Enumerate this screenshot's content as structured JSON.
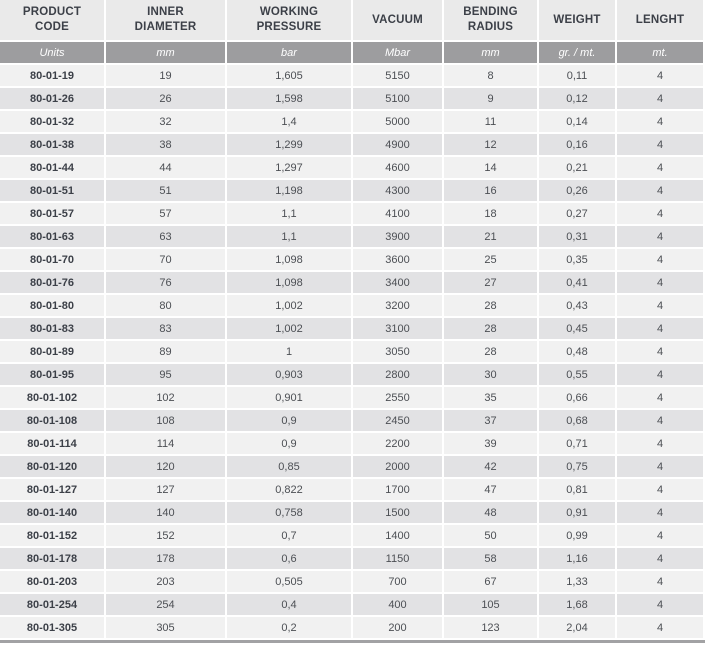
{
  "table": {
    "headers": [
      "PRODUCT\nCODE",
      "INNER\nDIAMETER",
      "WORKING\nPRESSURE",
      "VACUUM",
      "BENDING\nRADIUS",
      "WEIGHT",
      "LENGHT"
    ],
    "units": [
      "Units",
      "mm",
      "bar",
      "Mbar",
      "mm",
      "gr. / mt.",
      "mt."
    ],
    "rows": [
      [
        "80-01-19",
        "19",
        "1,605",
        "5150",
        "8",
        "0,11",
        "4"
      ],
      [
        "80-01-26",
        "26",
        "1,598",
        "5100",
        "9",
        "0,12",
        "4"
      ],
      [
        "80-01-32",
        "32",
        "1,4",
        "5000",
        "11",
        "0,14",
        "4"
      ],
      [
        "80-01-38",
        "38",
        "1,299",
        "4900",
        "12",
        "0,16",
        "4"
      ],
      [
        "80-01-44",
        "44",
        "1,297",
        "4600",
        "14",
        "0,21",
        "4"
      ],
      [
        "80-01-51",
        "51",
        "1,198",
        "4300",
        "16",
        "0,26",
        "4"
      ],
      [
        "80-01-57",
        "57",
        "1,1",
        "4100",
        "18",
        "0,27",
        "4"
      ],
      [
        "80-01-63",
        "63",
        "1,1",
        "3900",
        "21",
        "0,31",
        "4"
      ],
      [
        "80-01-70",
        "70",
        "1,098",
        "3600",
        "25",
        "0,35",
        "4"
      ],
      [
        "80-01-76",
        "76",
        "1,098",
        "3400",
        "27",
        "0,41",
        "4"
      ],
      [
        "80-01-80",
        "80",
        "1,002",
        "3200",
        "28",
        "0,43",
        "4"
      ],
      [
        "80-01-83",
        "83",
        "1,002",
        "3100",
        "28",
        "0,45",
        "4"
      ],
      [
        "80-01-89",
        "89",
        "1",
        "3050",
        "28",
        "0,48",
        "4"
      ],
      [
        "80-01-95",
        "95",
        "0,903",
        "2800",
        "30",
        "0,55",
        "4"
      ],
      [
        "80-01-102",
        "102",
        "0,901",
        "2550",
        "35",
        "0,66",
        "4"
      ],
      [
        "80-01-108",
        "108",
        "0,9",
        "2450",
        "37",
        "0,68",
        "4"
      ],
      [
        "80-01-114",
        "114",
        "0,9",
        "2200",
        "39",
        "0,71",
        "4"
      ],
      [
        "80-01-120",
        "120",
        "0,85",
        "2000",
        "42",
        "0,75",
        "4"
      ],
      [
        "80-01-127",
        "127",
        "0,822",
        "1700",
        "47",
        "0,81",
        "4"
      ],
      [
        "80-01-140",
        "140",
        "0,758",
        "1500",
        "48",
        "0,91",
        "4"
      ],
      [
        "80-01-152",
        "152",
        "0,7",
        "1400",
        "50",
        "0,99",
        "4"
      ],
      [
        "80-01-178",
        "178",
        "0,6",
        "1150",
        "58",
        "1,16",
        "4"
      ],
      [
        "80-01-203",
        "203",
        "0,505",
        "700",
        "67",
        "1,33",
        "4"
      ],
      [
        "80-01-254",
        "254",
        "0,4",
        "400",
        "105",
        "1,68",
        "4"
      ],
      [
        "80-01-305",
        "305",
        "0,2",
        "200",
        "123",
        "2,04",
        "4"
      ]
    ]
  },
  "colors": {
    "header_bg": "#eaeaea",
    "header_text": "#3c4048",
    "units_bg": "#9d9d9f",
    "units_text": "#ffffff",
    "row_odd": "#f1f1f1",
    "row_even": "#e2e2e4",
    "cell_text": "#4c4f54",
    "code_text": "#3c4048",
    "bottom_bar": "#a2a2a4"
  }
}
